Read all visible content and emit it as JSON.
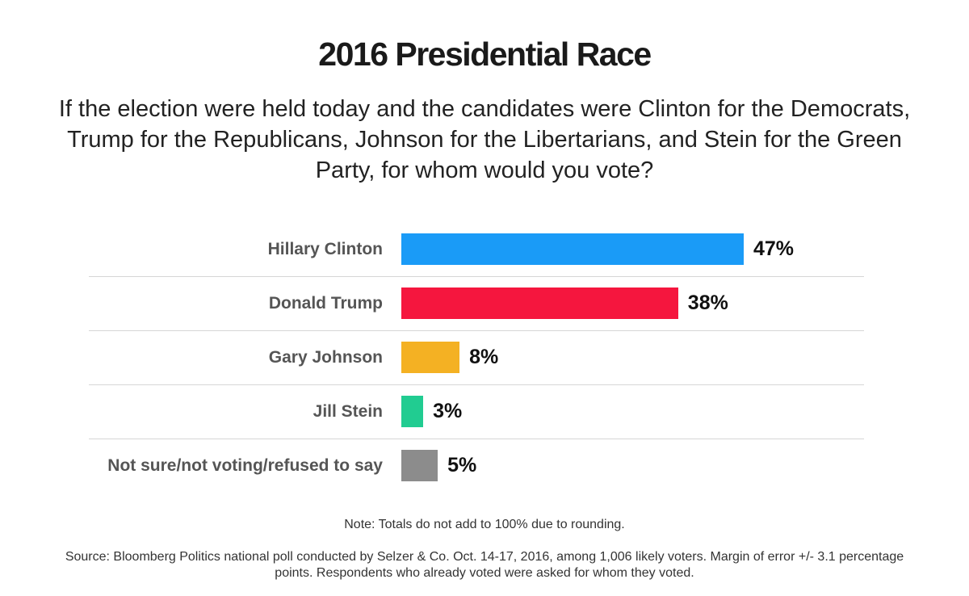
{
  "chart_data": {
    "type": "bar",
    "orientation": "horizontal",
    "title": "2016 Presidential Race",
    "subtitle": "If the election were held today and the candidates were Clinton for the Democrats, Trump for the Republicans, Johnson for the Libertarians, and Stein for the Green Party, for whom would you vote?",
    "categories": [
      "Hillary Clinton",
      "Donald Trump",
      "Gary Johnson",
      "Jill Stein",
      "Not sure/not voting/refused to say"
    ],
    "values": [
      47,
      38,
      8,
      3,
      5
    ],
    "value_labels": [
      "47%",
      "38%",
      "8%",
      "3%",
      "5%"
    ],
    "colors": [
      "#1a9bf7",
      "#f5163e",
      "#f4b123",
      "#21cc91",
      "#8c8c8c"
    ],
    "xlim": [
      0,
      47
    ],
    "note": "Note: Totals do not add to 100% due to rounding.",
    "source": "Source: Bloomberg Politics national poll conducted by Selzer & Co. Oct. 14-17, 2016, among 1,006 likely voters. Margin of error +/- 3.1 percentage points. Respondents who already voted were asked for whom they voted."
  }
}
